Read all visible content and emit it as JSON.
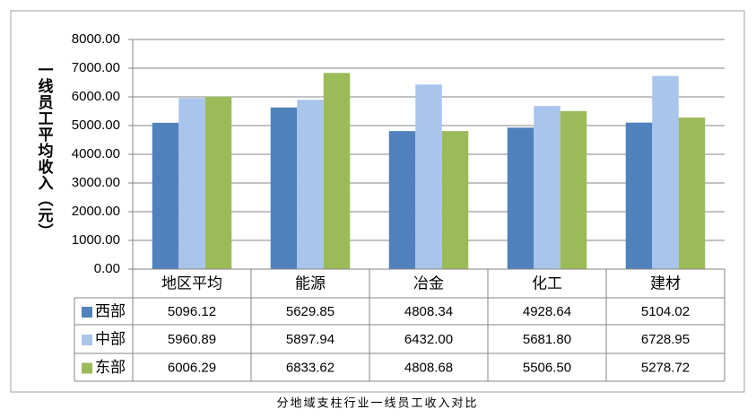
{
  "chart_data": {
    "type": "bar",
    "y_label": "一线员工平均收入（元）",
    "caption": "分地域支柱行业一线员工收入对比",
    "categories": [
      "地区平均",
      "能源",
      "冶金",
      "化工",
      "建材"
    ],
    "series": [
      {
        "name": "西部",
        "color": "#4f81bd",
        "values": [
          5096.12,
          5629.85,
          4808.34,
          4928.64,
          5104.02
        ],
        "value_labels": [
          "5096.12",
          "5629.85",
          "4808.34",
          "4928.64",
          "5104.02"
        ]
      },
      {
        "name": "中部",
        "color": "#aac5ec",
        "values": [
          5960.89,
          5897.94,
          6432.0,
          5681.8,
          6728.95
        ],
        "value_labels": [
          "5960.89",
          "5897.94",
          "6432.00",
          "5681.80",
          "6728.95"
        ]
      },
      {
        "name": "东部",
        "color": "#9bbb59",
        "values": [
          6006.29,
          6833.62,
          4808.68,
          5506.5,
          5278.72
        ],
        "value_labels": [
          "6006.29",
          "6833.62",
          "4808.68",
          "5506.50",
          "5278.72"
        ]
      }
    ],
    "ylim": [
      0,
      8000
    ],
    "yticks": [
      {
        "value": 0,
        "label": "0.00"
      },
      {
        "value": 1000,
        "label": "1000.00"
      },
      {
        "value": 2000,
        "label": "2000.00"
      },
      {
        "value": 3000,
        "label": "3000.00"
      },
      {
        "value": 4000,
        "label": "4000.00"
      },
      {
        "value": 5000,
        "label": "5000.00"
      },
      {
        "value": 6000,
        "label": "6000.00"
      },
      {
        "value": 7000,
        "label": "7000.00"
      },
      {
        "value": 8000,
        "label": "8000.00"
      }
    ],
    "grid": true
  }
}
